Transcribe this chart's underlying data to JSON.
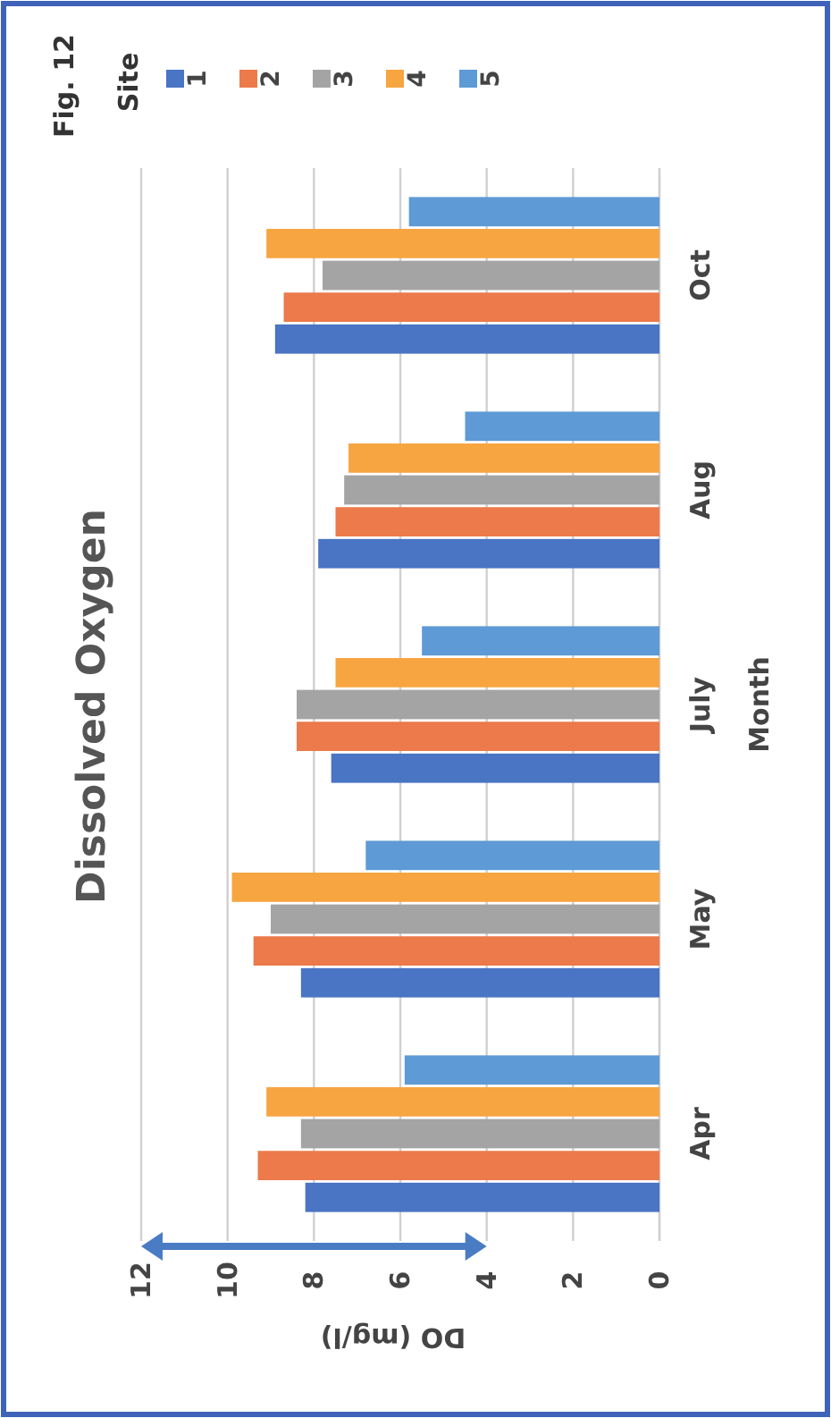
{
  "chart_data": {
    "type": "bar",
    "orientation": "horizontal",
    "title": "Dissolved Oxygen",
    "xlabel": "DO (mg/l)",
    "ylabel": "Month",
    "legend_title": "Site",
    "annotations": [
      "Fig. 12"
    ],
    "categories": [
      "Oct",
      "Aug",
      "July",
      "May",
      "Apr"
    ],
    "series": [
      {
        "name": "1",
        "color": "#4a74c4",
        "values": [
          8.9,
          7.9,
          7.6,
          8.3,
          8.2
        ]
      },
      {
        "name": "2",
        "color": "#ec7a4a",
        "values": [
          8.7,
          7.5,
          8.4,
          9.4,
          9.3
        ]
      },
      {
        "name": "3",
        "color": "#a4a4a4",
        "values": [
          7.8,
          7.3,
          8.4,
          9.0,
          8.3
        ]
      },
      {
        "name": "4",
        "color": "#f7a541",
        "values": [
          9.1,
          7.2,
          7.5,
          9.9,
          9.1
        ]
      },
      {
        "name": "5",
        "color": "#5d9ad6",
        "values": [
          5.8,
          4.5,
          5.5,
          6.8,
          5.9
        ]
      }
    ],
    "xlim": [
      12,
      0
    ],
    "xticks": [
      12,
      10,
      8,
      6,
      4,
      2,
      0
    ],
    "grid": "x",
    "legend": "top"
  }
}
